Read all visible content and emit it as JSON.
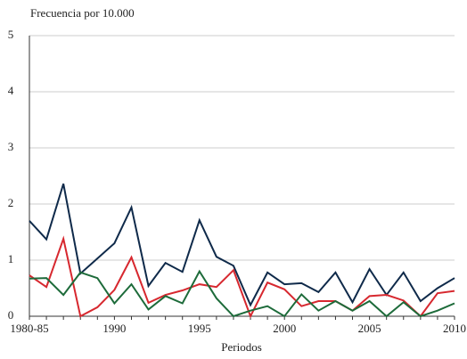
{
  "chart_data": {
    "type": "line",
    "y_label": "Frecuencia por 10.000",
    "x_label": "Periodos",
    "categories": [
      "1980-85",
      null,
      null,
      null,
      null,
      "1990",
      null,
      null,
      null,
      null,
      "1995",
      null,
      null,
      null,
      null,
      "2000",
      null,
      null,
      null,
      null,
      "2005",
      null,
      null,
      null,
      null,
      "2010"
    ],
    "series": [
      {
        "color": "#0f2a4a",
        "values": [
          1.7,
          1.37,
          2.36,
          0.76,
          1.03,
          1.3,
          1.94,
          0.54,
          0.95,
          0.79,
          1.71,
          1.06,
          0.9,
          0.2,
          0.78,
          0.57,
          0.59,
          0.43,
          0.78,
          0.25,
          0.84,
          0.38,
          0.78,
          0.27,
          0.5,
          0.68
        ]
      },
      {
        "color": "#d7282f",
        "values": [
          0.73,
          0.52,
          1.38,
          0,
          0.16,
          0.47,
          1.05,
          0.24,
          0.38,
          0.46,
          0.57,
          0.52,
          0.82,
          0,
          0.6,
          0.48,
          0.18,
          0.27,
          0.27,
          0.1,
          0.36,
          0.38,
          0.28,
          0,
          0.41,
          0.45
        ]
      },
      {
        "color": "#1d6b3a",
        "values": [
          0.67,
          0.68,
          0.38,
          0.78,
          0.68,
          0.23,
          0.57,
          0.12,
          0.36,
          0.23,
          0.8,
          0.32,
          0,
          0.1,
          0.18,
          0,
          0.39,
          0.1,
          0.27,
          0.1,
          0.27,
          0,
          0.25,
          0,
          0.1,
          0.23
        ]
      }
    ],
    "ylim": [
      0,
      5
    ],
    "yticks": [
      0,
      1,
      2,
      3,
      4,
      5
    ],
    "grid": true
  }
}
